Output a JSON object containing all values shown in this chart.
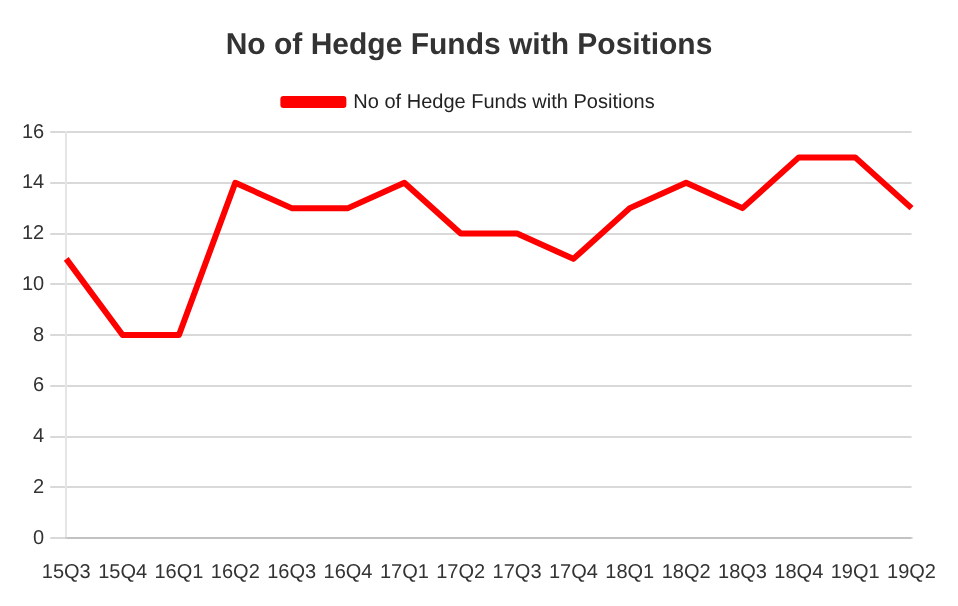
{
  "chart_data": {
    "type": "line",
    "title": "No of Hedge Funds with Positions",
    "categories": [
      "15Q3",
      "15Q4",
      "16Q1",
      "16Q2",
      "16Q3",
      "16Q4",
      "17Q1",
      "17Q2",
      "17Q3",
      "17Q4",
      "18Q1",
      "18Q2",
      "18Q3",
      "18Q4",
      "19Q1",
      "19Q2"
    ],
    "series": [
      {
        "name": "No of Hedge Funds with Positions",
        "color": "#ff0000",
        "values": [
          11,
          8,
          8,
          14,
          13,
          13,
          14,
          12,
          12,
          11,
          13,
          14,
          13,
          15,
          15,
          13
        ]
      }
    ],
    "ylim": [
      0,
      16
    ],
    "yticks": [
      0,
      2,
      4,
      6,
      8,
      10,
      12,
      14,
      16
    ],
    "grid": "y",
    "legend": "top",
    "marker": "none",
    "line_style": "solid"
  }
}
